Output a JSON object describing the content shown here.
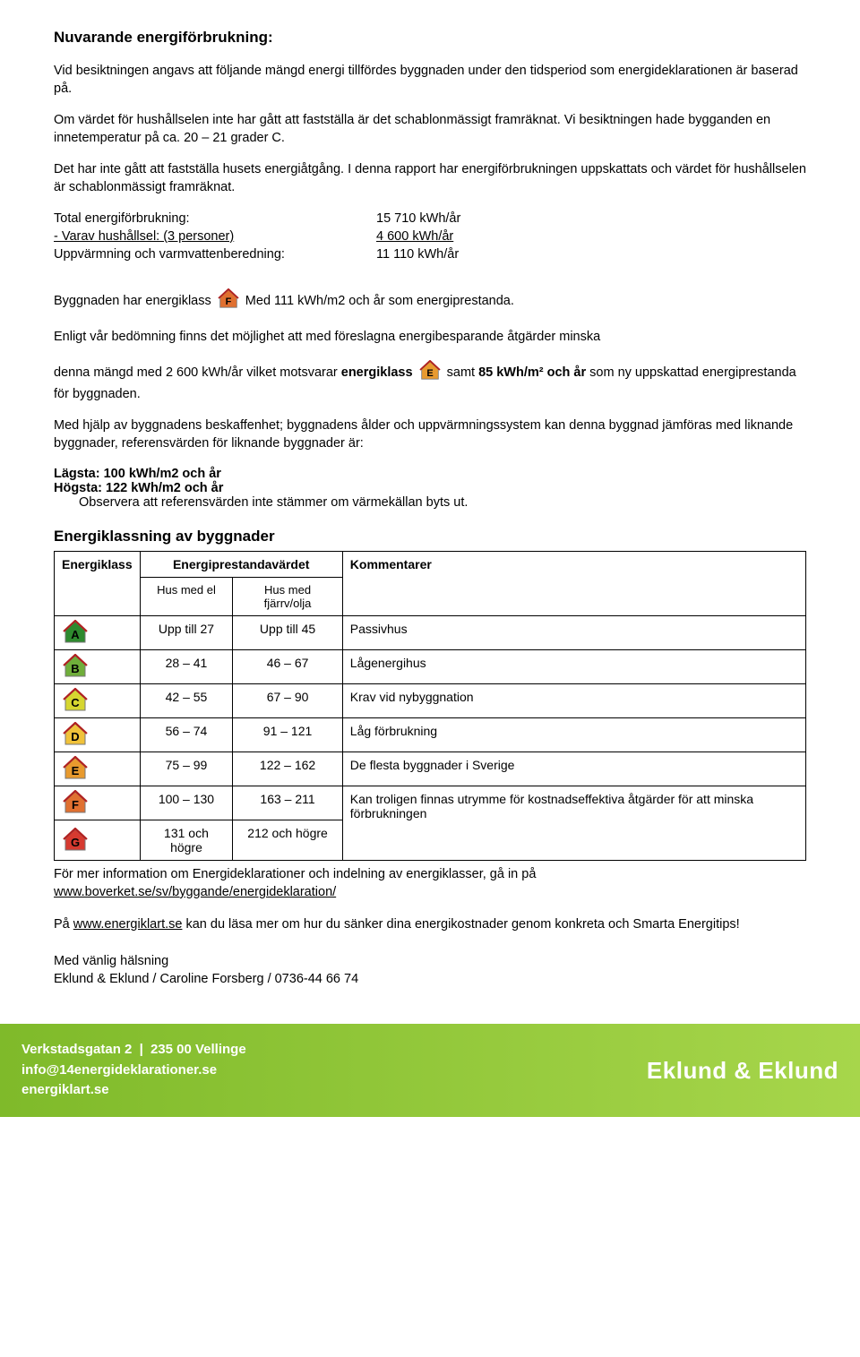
{
  "title": "Nuvarande energiförbrukning:",
  "para1": "Vid besiktningen angavs att följande mängd energi tillfördes byggnaden under den tidsperiod som energideklarationen är baserad på.",
  "para2": "Om värdet för hushållselen inte har gått att fastställa är det schablonmässigt framräknat. Vi besiktningen hade bygganden en innetemperatur på ca. 20 – 21 grader C.",
  "para3": "Det har inte gått att fastställa husets energiåtgång. I denna rapport har energiförbrukningen uppskattats och värdet för hushållselen är schablonmässigt framräknat.",
  "stats": {
    "row1_label": "Total energiförbrukning:",
    "row1_value": "15 710 kWh/år",
    "row2_label": "- Varav hushållsel: (3 personer)",
    "row2_value": "4 600 kWh/år",
    "row3_label": "Uppvärmning och varmvattenberedning:",
    "row3_value": "11 110 kWh/år"
  },
  "class_line_pre": "Byggnaden har energiklass",
  "class_line_post": "Med 111 kWh/m2 och år som energiprestanda.",
  "para4": "Enligt vår bedömning finns det möjlighet att med föreslagna energibesparande åtgärder minska",
  "para5_pre": "denna mängd med 2 600 kWh/år vilket motsvarar ",
  "para5_bold1": "energiklass ",
  "para5_mid": " samt ",
  "para5_bold2": "85 kWh/m² och år",
  "para5_post": " som ny uppskattad energiprestanda för byggnaden.",
  "para6": "Med hjälp av byggnadens beskaffenhet; byggnadens ålder och uppvärmningssystem kan denna byggnad jämföras med liknande byggnader, referensvärden för liknande byggnader är:",
  "lowest_label": "Lägsta:  100 kWh/m2 och år",
  "highest_label": "Högsta:  122 kWh/m2 och år",
  "note": "Observera att referensvärden inte stämmer om värmekällan byts ut.",
  "table_title": "Energiklassning av byggnader",
  "table": {
    "col_energiklass": "Energiklass",
    "col_prestanda": "Energiprestandavärdet",
    "col_el": "Hus med el",
    "col_fjarr": "Hus med fjärrv/olja",
    "col_kommentar": "Kommentarer",
    "rows": [
      {
        "letter": "A",
        "fill": "#2e8a2e",
        "el": "Upp till 27",
        "fjarr": "Upp till 45",
        "comment": "Passivhus"
      },
      {
        "letter": "B",
        "fill": "#6fae3a",
        "el": "28 – 41",
        "fjarr": "46 – 67",
        "comment": "Lågenergihus"
      },
      {
        "letter": "C",
        "fill": "#d6d630",
        "el": "42 – 55",
        "fjarr": "67 – 90",
        "comment": "Krav vid nybyggnation"
      },
      {
        "letter": "D",
        "fill": "#f0c23a",
        "el": "56 – 74",
        "fjarr": "91 – 121",
        "comment": "Låg förbrukning"
      },
      {
        "letter": "E",
        "fill": "#e89a2e",
        "el": "75 – 99",
        "fjarr": "122 – 162",
        "comment": "De flesta byggnader i Sverige"
      },
      {
        "letter": "F",
        "fill": "#e07030",
        "el": "100 – 130",
        "fjarr": "163 – 211",
        "comment": "Kan troligen finnas utrymme för kostnadseffektiva åtgärder för att minska förbrukningen"
      },
      {
        "letter": "G",
        "fill": "#d63a30",
        "el": "131 och högre",
        "fjarr": "212 och högre",
        "comment": ""
      }
    ]
  },
  "more_info_pre": "För mer information om Energideklarationer och indelning av energiklasser, gå in på ",
  "more_info_link": "www.boverket.se/sv/byggande/energideklaration/",
  "para_energiklart_pre": "På ",
  "para_energiklart_link": "www.energiklart.se",
  "para_energiklart_post": " kan du läsa mer om hur du sänker dina energikostnader genom konkreta och Smarta Energitips!",
  "signoff1": "Med vänlig hälsning",
  "signoff2": "Eklund & Eklund / Caroline Forsberg / 0736-44 66 74",
  "footer": {
    "addr1": "Verkstadsgatan 2",
    "addr2": "235 00 Vellinge",
    "email": "info@14energideklarationer.se",
    "site": "energiklart.se",
    "brand": "Eklund & Eklund"
  },
  "badges": {
    "F": {
      "fill": "#e07030"
    },
    "E": {
      "fill": "#e89a2e"
    }
  }
}
